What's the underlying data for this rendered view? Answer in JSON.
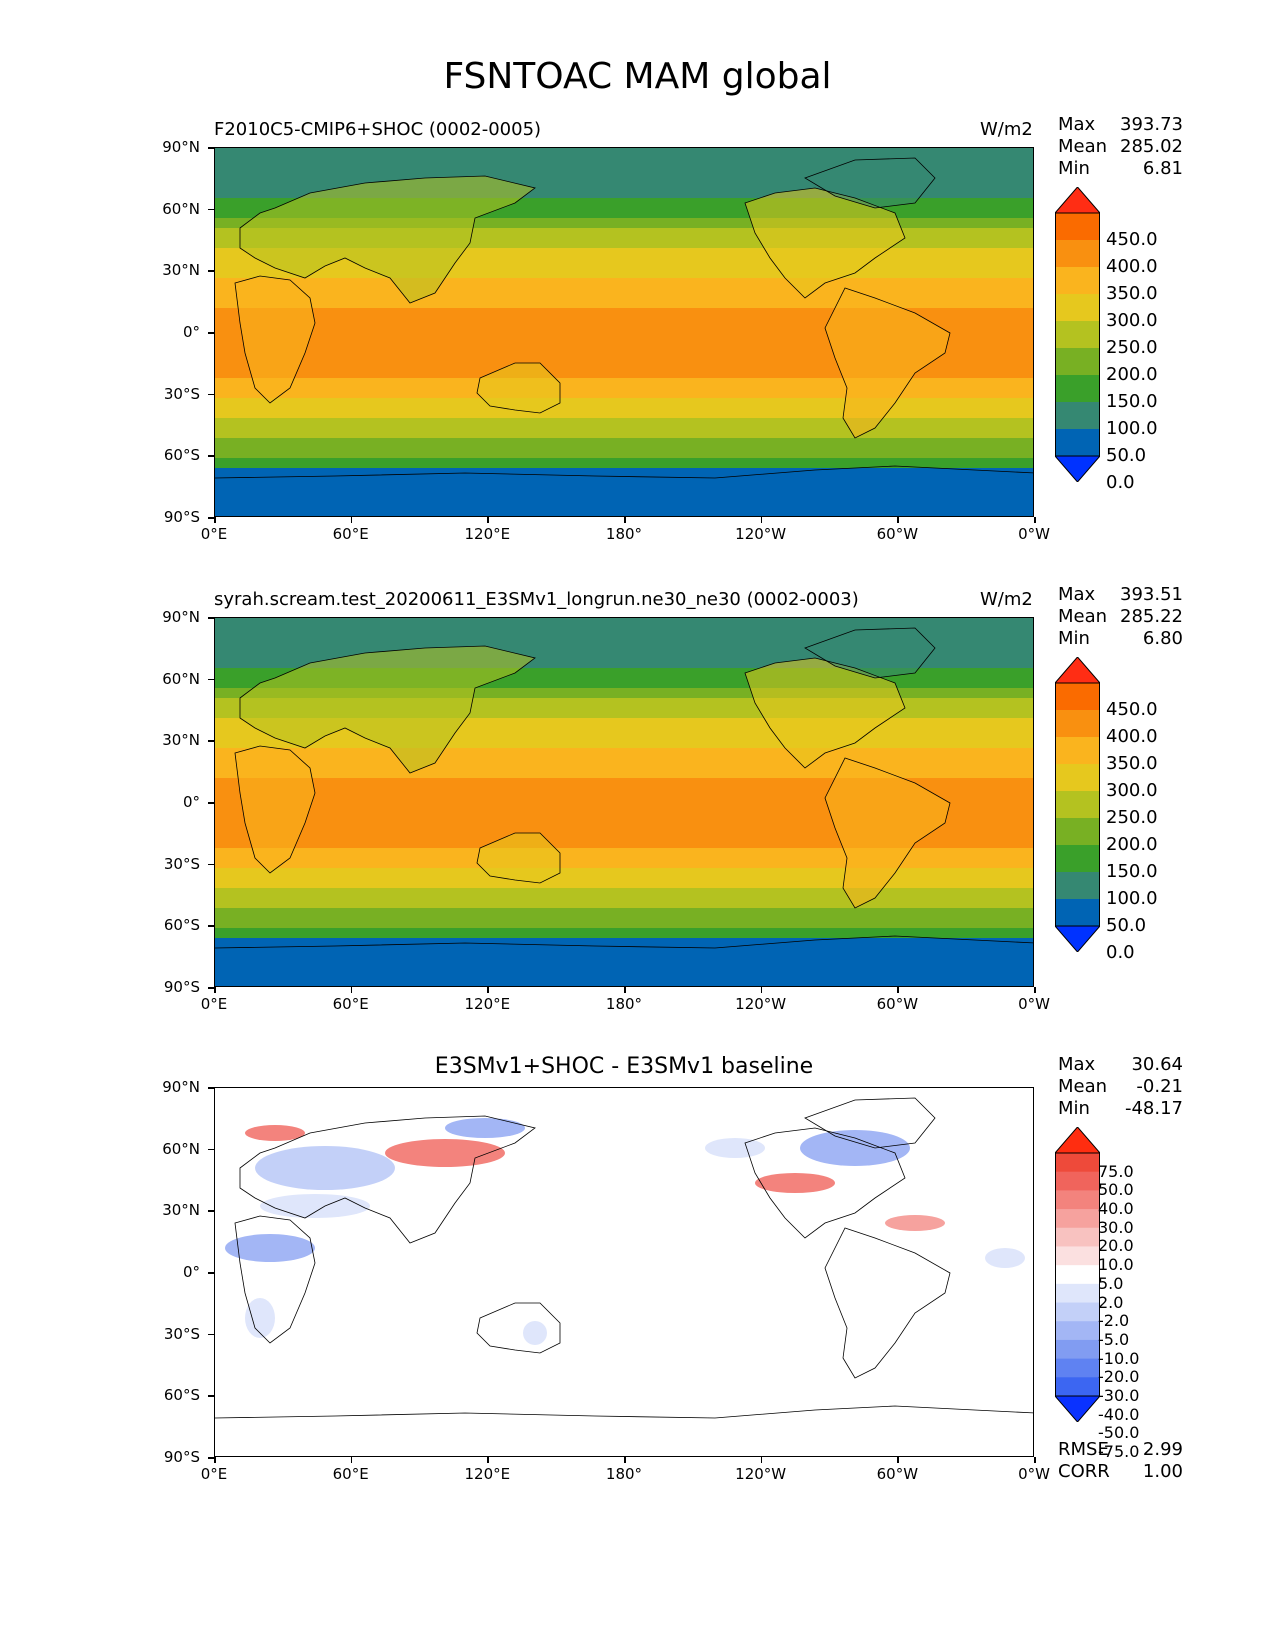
{
  "title": "FSNTOAC MAM global",
  "lat_ticks": [
    "90°N",
    "60°N",
    "30°N",
    "0°",
    "30°S",
    "60°S",
    "90°S"
  ],
  "lon_ticks": [
    "0°E",
    "60°E",
    "120°E",
    "180°",
    "120°W",
    "60°W",
    "0°W"
  ],
  "panels": [
    {
      "title": "F2010C5-CMIP6+SHOC (0002-0005)",
      "units": "W/m2",
      "stats": [
        {
          "label": "Max",
          "value": "393.73"
        },
        {
          "label": "Mean",
          "value": "285.02"
        },
        {
          "label": "Min",
          "value": "6.81"
        }
      ],
      "colorbar": [
        "450.0",
        "400.0",
        "350.0",
        "300.0",
        "250.0",
        "200.0",
        "150.0",
        "100.0",
        "50.0",
        "0.0"
      ]
    },
    {
      "title": "syrah.scream.test_20200611_E3SMv1_longrun.ne30_ne30 (0002-0003)",
      "units": "W/m2",
      "stats": [
        {
          "label": "Max",
          "value": "393.51"
        },
        {
          "label": "Mean",
          "value": "285.22"
        },
        {
          "label": "Min",
          "value": "6.80"
        }
      ],
      "colorbar": [
        "450.0",
        "400.0",
        "350.0",
        "300.0",
        "250.0",
        "200.0",
        "150.0",
        "100.0",
        "50.0",
        "0.0"
      ]
    },
    {
      "title": "E3SMv1+SHOC - E3SMv1 baseline",
      "units": "",
      "stats": [
        {
          "label": "Max",
          "value": "30.64"
        },
        {
          "label": "Mean",
          "value": "-0.21"
        },
        {
          "label": "Min",
          "value": "-48.17"
        }
      ],
      "colorbar": [
        "75.0",
        "50.0",
        "40.0",
        "30.0",
        "20.0",
        "10.0",
        "5.0",
        "2.0",
        "-2.0",
        "-5.0",
        "-10.0",
        "-20.0",
        "-30.0",
        "-40.0",
        "-50.0",
        "-75.0"
      ],
      "extra_stats": [
        {
          "label": "RMSE",
          "value": "2.99"
        },
        {
          "label": "CORR",
          "value": "1.00"
        }
      ]
    }
  ],
  "colors": {
    "abs_cmap": [
      "#0032ff",
      "#0064b4",
      "#358872",
      "#3aa02a",
      "#78b023",
      "#b4c220",
      "#e6c81e",
      "#fab41e",
      "#f99010",
      "#fa6b00",
      "#ff2d14"
    ],
    "diff_cmap": [
      "#0a32ff",
      "#3c66f2",
      "#5f82f2",
      "#819cf2",
      "#a3b6f5",
      "#c3d0f8",
      "#dfe6fb",
      "#ffffff",
      "#fbe0e0",
      "#f8c2c0",
      "#f6a29e",
      "#f3837d",
      "#f0645c",
      "#ee4a3a",
      "#ff2d10"
    ]
  }
}
